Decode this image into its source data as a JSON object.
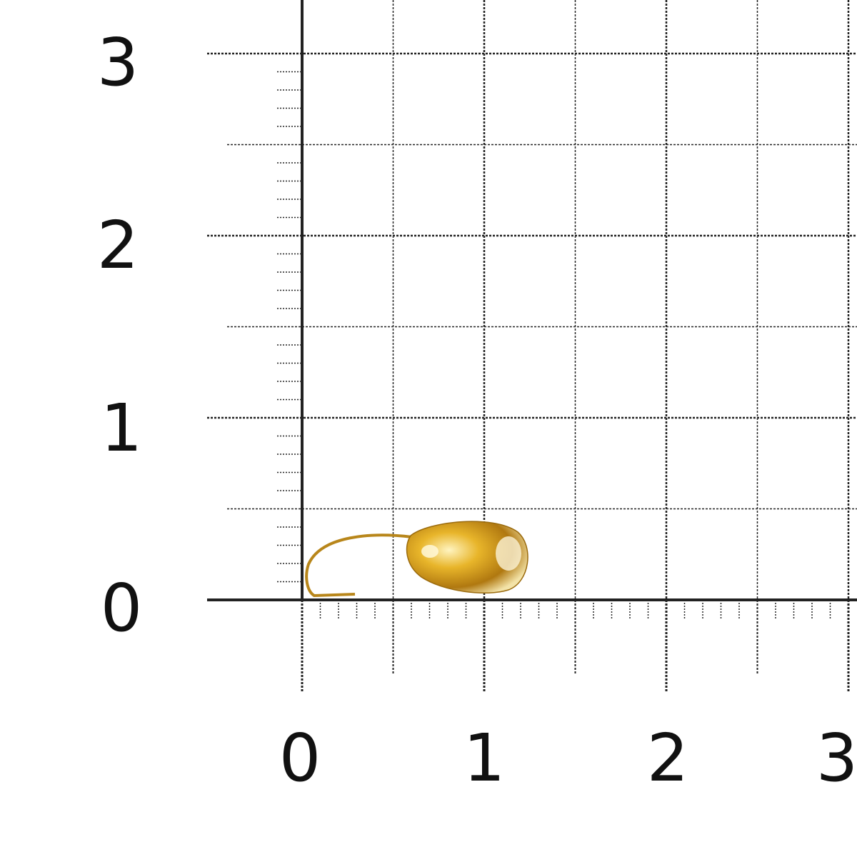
{
  "scale": {
    "y_labels": [
      "0",
      "1",
      "2",
      "3"
    ],
    "x_labels": [
      "0",
      "1",
      "2",
      "3"
    ]
  },
  "object": {
    "name": "gold-teardrop-jig",
    "color": "#d9a520"
  },
  "colors": {
    "grid": "#222222",
    "background": "#ffffff"
  }
}
